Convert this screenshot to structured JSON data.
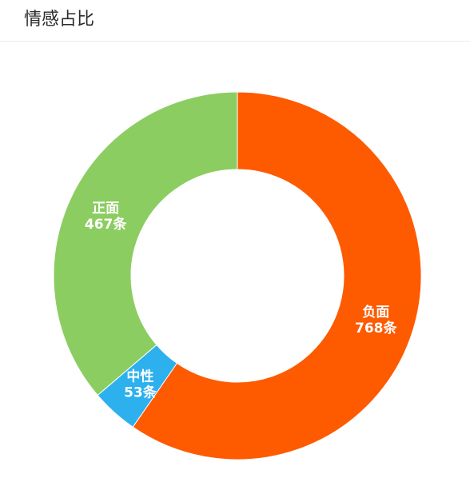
{
  "header": {
    "title": "情感占比"
  },
  "chart_data": {
    "type": "pie",
    "variant": "donut",
    "title": "",
    "start_angle_deg": 90,
    "direction": "clockwise",
    "unit": "条",
    "slices": [
      {
        "name": "负面",
        "value": 768,
        "color": "#fe5a00",
        "label_value": "768条"
      },
      {
        "name": "中性",
        "value": 53,
        "color": "#2db0ee",
        "label_value": "53条"
      },
      {
        "name": "正面",
        "value": 467,
        "color": "#8ccd61",
        "label_value": "467条"
      }
    ]
  }
}
